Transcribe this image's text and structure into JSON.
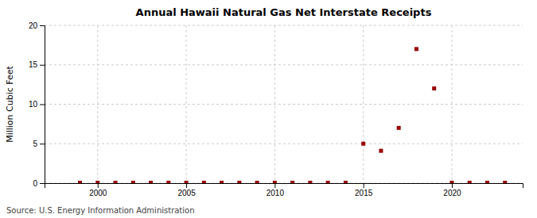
{
  "chart_data": {
    "type": "scatter",
    "title": "Annual Hawaii Natural Gas Net Interstate Receipts",
    "y_label": "Million Cubic Feet",
    "annotations": [
      "Source: U.S. Energy Information Administration"
    ],
    "x": [
      1999,
      2000,
      2001,
      2002,
      2003,
      2004,
      2005,
      2006,
      2007,
      2008,
      2009,
      2010,
      2011,
      2012,
      2013,
      2014,
      2015,
      2016,
      2017,
      2018,
      2019,
      2020,
      2021,
      2022,
      2023
    ],
    "values": [
      0.05,
      0.05,
      0.05,
      0.05,
      0.05,
      0.05,
      0.05,
      0.05,
      0.05,
      0.05,
      0.05,
      0.05,
      0.05,
      0.05,
      0.05,
      0.05,
      5.0,
      4.1,
      7.0,
      17.0,
      12.0,
      0.05,
      0.05,
      0.05,
      0.05
    ],
    "color": "#990000",
    "marker": "square",
    "xlim": [
      1997,
      2024
    ],
    "ylim": [
      0,
      20
    ],
    "xticks": [
      2000,
      2005,
      2010,
      2015,
      2020
    ],
    "yticks": [
      0,
      5,
      10,
      15,
      20
    ],
    "grid": true
  }
}
